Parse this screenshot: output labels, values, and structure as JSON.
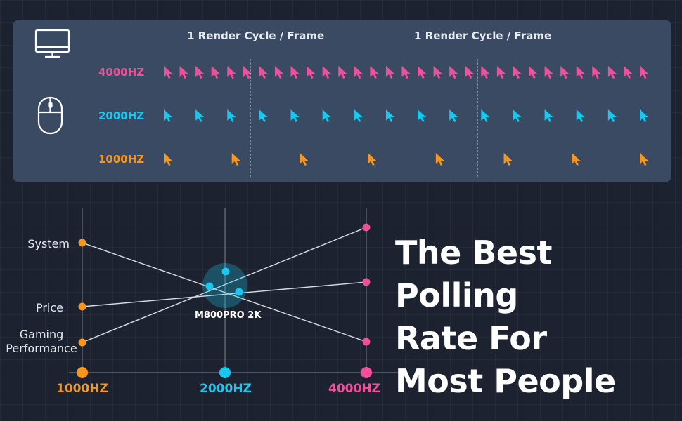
{
  "top_panel": {
    "cycle_labels": [
      "1 Render Cycle / Frame",
      "1 Render Cycle / Frame"
    ],
    "rates": [
      {
        "label": "4000HZ",
        "color": "#f0509b",
        "cursor_count": 31
      },
      {
        "label": "2000HZ",
        "color": "#19c8f0",
        "cursor_count": 16
      },
      {
        "label": "1000HZ",
        "color": "#f5961e",
        "cursor_count": 8
      }
    ],
    "icons": [
      "monitor-icon",
      "mouse-icon"
    ]
  },
  "chart": {
    "categories": [
      "System",
      "Price",
      "Gaming\nPerformance"
    ],
    "axis_labels": [
      {
        "text": "1000HZ",
        "color": "#f5961e"
      },
      {
        "text": "2000HZ",
        "color": "#19c8f0"
      },
      {
        "text": "4000HZ",
        "color": "#f0509b"
      }
    ],
    "product_label": "M800PRO 2K"
  },
  "headline": {
    "lines": [
      "The Best Polling",
      "Rate For",
      "Most People"
    ]
  }
}
